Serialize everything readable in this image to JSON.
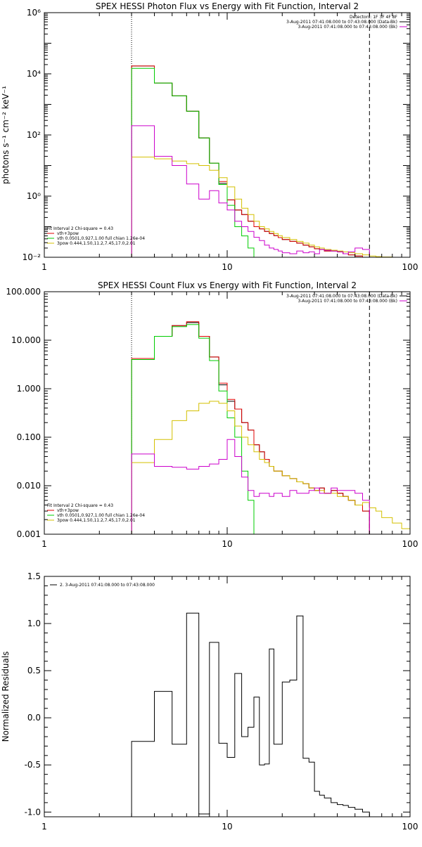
{
  "chart_data": [
    {
      "type": "line",
      "title": "SPEX HESSI Photon Flux vs Energy with Fit Function, Interval 2",
      "xlabel": "",
      "ylabel": "photons s⁻¹ cm⁻² keV⁻¹",
      "xscale": "log",
      "yscale": "log",
      "xlim": [
        1,
        100
      ],
      "ylim": [
        0.01,
        1000000
      ],
      "xticks": [
        {
          "value": 1,
          "label": "1"
        },
        {
          "value": 10,
          "label": "10"
        },
        {
          "value": 100,
          "label": "100"
        }
      ],
      "yticks": [
        {
          "value": 0.01,
          "label": "10⁻²"
        },
        {
          "value": 1,
          "label": "10⁰"
        },
        {
          "value": 100,
          "label": "10²"
        },
        {
          "value": 10000,
          "label": "10⁴"
        },
        {
          "value": 1000000,
          "label": "10⁶"
        }
      ],
      "vlines": [
        {
          "x": 3,
          "style": "dotted"
        },
        {
          "x": 60,
          "style": "dashed"
        }
      ],
      "legend_top_right": [
        {
          "text": "Detectors: 1F 3F 4F 8F",
          "color": ""
        },
        {
          "text": "3-Aug-2011 07:41:08.000 to 07:43:08.000 (Data-Bk)",
          "color": "#000000"
        },
        {
          "text": "3-Aug-2011 07:41:08.000 to 07:43:08.000 (Bk)",
          "color": "#cc00cc"
        }
      ],
      "legend_bottom_left": [
        {
          "text": "Fit Interval 2   Chi-square = 0.43",
          "color": ""
        },
        {
          "text": "vth+3pow",
          "color": "#e00000"
        },
        {
          "text": "vth 0.0501,0.927,1.00  full chian 1.26e-04",
          "color": "#00cc00"
        },
        {
          "text": "3pow 0.444,1.50,11.2,7.45,17.0,2.01",
          "color": "#d4c000"
        }
      ],
      "bin_edges": [
        3,
        3.5,
        4,
        4.5,
        5,
        5.5,
        6,
        6.5,
        7,
        7.5,
        8,
        8.5,
        9,
        9.5,
        10,
        11,
        12,
        13,
        14,
        15,
        16,
        17,
        18,
        19,
        20,
        22,
        24,
        26,
        28,
        30,
        32,
        34,
        37,
        40,
        43,
        46,
        50,
        55,
        60,
        65,
        70,
        80,
        90,
        100
      ],
      "series": [
        {
          "name": "Data-Bk",
          "color": "#000000",
          "start": 3,
          "end": 60,
          "values": [
            18000,
            18000,
            5000,
            5000,
            1900,
            1900,
            600,
            600,
            80,
            80,
            12,
            12,
            2.6,
            2.6,
            0.75,
            0.35,
            0.25,
            0.15,
            0.1,
            0.085,
            0.07,
            0.06,
            0.051,
            0.044,
            0.038,
            0.033,
            0.029,
            0.025,
            0.022,
            0.019,
            0.018,
            0.016,
            0.016,
            0.015,
            0.013,
            0.012,
            0.011,
            0.01
          ]
        },
        {
          "name": "vth+3pow",
          "color": "#e00000",
          "start": 3,
          "end": 60,
          "values": [
            18000,
            18000,
            5000,
            5000,
            1900,
            1900,
            600,
            600,
            80,
            80,
            12,
            12,
            3,
            3,
            0.75,
            0.35,
            0.25,
            0.15,
            0.1,
            0.085,
            0.07,
            0.06,
            0.051,
            0.044,
            0.038,
            0.033,
            0.029,
            0.025,
            0.022,
            0.019,
            0.018,
            0.016,
            0.016,
            0.015,
            0.013,
            0.012,
            0.011,
            0.01
          ]
        },
        {
          "name": "vth",
          "color": "#00cc00",
          "start": 3,
          "end": 15,
          "values": [
            15000,
            15000,
            5000,
            5000,
            1900,
            1900,
            600,
            600,
            80,
            80,
            12,
            12,
            2.4,
            2.4,
            0.5,
            0.1,
            0.05,
            0.02,
            0.01
          ]
        },
        {
          "name": "3pow",
          "color": "#d4c000",
          "start": 3,
          "end": 75,
          "values": [
            19,
            19,
            16.5,
            16.5,
            14,
            14,
            11.5,
            11.5,
            10,
            10,
            7,
            7,
            4,
            4,
            2,
            0.8,
            0.4,
            0.25,
            0.15,
            0.1,
            0.085,
            0.07,
            0.06,
            0.051,
            0.044,
            0.038,
            0.033,
            0.029,
            0.025,
            0.022,
            0.02,
            0.018,
            0.017,
            0.016,
            0.015,
            0.014,
            0.013,
            0.012,
            0.011,
            0.0105,
            0.0102
          ]
        },
        {
          "name": "Bk",
          "color": "#cc00cc",
          "start": 3,
          "end": 60,
          "values": [
            200,
            200,
            20,
            20,
            10,
            10,
            2.5,
            2.5,
            0.8,
            0.8,
            1.5,
            1.5,
            0.6,
            0.6,
            0.35,
            0.15,
            0.1,
            0.07,
            0.045,
            0.035,
            0.025,
            0.02,
            0.018,
            0.016,
            0.014,
            0.013,
            0.016,
            0.014,
            0.015,
            0.013,
            0.018,
            0.017,
            0.016,
            0.015,
            0.013,
            0.015,
            0.02,
            0.018
          ]
        }
      ]
    },
    {
      "type": "line",
      "title": "SPEX HESSI Count Flux vs Energy with Fit Function, Interval 2",
      "xlabel": "",
      "ylabel": "",
      "xscale": "log",
      "yscale": "log",
      "xlim": [
        1,
        100
      ],
      "ylim": [
        0.001,
        100
      ],
      "xticks": [
        {
          "value": 1,
          "label": "1"
        },
        {
          "value": 10,
          "label": "10"
        },
        {
          "value": 100,
          "label": "100"
        }
      ],
      "yticks": [
        {
          "value": 0.001,
          "label": "0.001"
        },
        {
          "value": 0.01,
          "label": "0.010"
        },
        {
          "value": 0.1,
          "label": "0.100"
        },
        {
          "value": 1,
          "label": "1.000"
        },
        {
          "value": 10,
          "label": "10.000"
        },
        {
          "value": 100,
          "label": "100.000"
        }
      ],
      "vlines": [
        {
          "x": 3,
          "style": "dotted"
        },
        {
          "x": 60,
          "style": "dashed"
        }
      ],
      "legend_top_right": [
        {
          "text": "3-Aug-2011 07:41:08.000 to 07:43:08.000 (Data-Bk)",
          "color": "#000000"
        },
        {
          "text": "3-Aug-2011 07:41:08.000 to 07:43:08.000 (Bk)",
          "color": "#cc00cc"
        }
      ],
      "legend_bottom_left": [
        {
          "text": "Fit Interval 2   Chi-square = 0.43",
          "color": ""
        },
        {
          "text": "vth+3pow",
          "color": "#e00000"
        },
        {
          "text": "vth 0.0501,0.927,1.00  full chian 1.26e-04",
          "color": "#00cc00"
        },
        {
          "text": "3pow 0.444,1.50,11.2,7.45,17.0,2.01",
          "color": "#d4c000"
        }
      ],
      "bin_edges": [
        3,
        4,
        5,
        6,
        7,
        8,
        9,
        10,
        11,
        12,
        13,
        14,
        15,
        16,
        17,
        18,
        20,
        22,
        24,
        26,
        28,
        30,
        32,
        34,
        37,
        40,
        43,
        46,
        50,
        55,
        60,
        65,
        70,
        80,
        90,
        100
      ],
      "series": [
        {
          "name": "Data-Bk",
          "color": "#000000",
          "start": 3,
          "end": 60,
          "values": [
            4,
            12,
            20,
            23,
            12,
            4.5,
            1.2,
            0.55,
            0.38,
            0.2,
            0.14,
            0.07,
            0.05,
            0.035,
            0.025,
            0.02,
            0.016,
            0.014,
            0.012,
            0.011,
            0.009,
            0.008,
            0.009,
            0.007,
            0.008,
            0.007,
            0.006,
            0.005,
            0.004,
            0.003
          ]
        },
        {
          "name": "vth+3pow",
          "color": "#e00000",
          "start": 3,
          "end": 60,
          "values": [
            4.2,
            12,
            20,
            24,
            12,
            4.5,
            1.3,
            0.6,
            0.38,
            0.2,
            0.14,
            0.07,
            0.05,
            0.035,
            0.025,
            0.02,
            0.016,
            0.014,
            0.012,
            0.011,
            0.009,
            0.008,
            0.009,
            0.007,
            0.008,
            0.007,
            0.006,
            0.005,
            0.004,
            0.003
          ]
        },
        {
          "name": "vth",
          "color": "#00cc00",
          "start": 3,
          "end": 15,
          "values": [
            4,
            12,
            19,
            21,
            11,
            3.8,
            0.9,
            0.25,
            0.1,
            0.02,
            0.005,
            0.001
          ]
        },
        {
          "name": "3pow",
          "color": "#d4c000",
          "start": 3,
          "end": 100,
          "values": [
            0.03,
            0.09,
            0.22,
            0.35,
            0.5,
            0.55,
            0.5,
            0.35,
            0.17,
            0.1,
            0.07,
            0.05,
            0.035,
            0.03,
            0.025,
            0.02,
            0.016,
            0.014,
            0.012,
            0.011,
            0.009,
            0.008,
            0.008,
            0.007,
            0.007,
            0.006,
            0.006,
            0.005,
            0.004,
            0.0045,
            0.0035,
            0.003,
            0.0022,
            0.0017,
            0.0013
          ]
        },
        {
          "name": "Bk",
          "color": "#cc00cc",
          "start": 3,
          "end": 60,
          "values": [
            0.045,
            0.025,
            0.024,
            0.022,
            0.025,
            0.028,
            0.035,
            0.09,
            0.04,
            0.015,
            0.008,
            0.006,
            0.007,
            0.007,
            0.006,
            0.007,
            0.006,
            0.008,
            0.007,
            0.007,
            0.008,
            0.009,
            0.007,
            0.007,
            0.009,
            0.008,
            0.008,
            0.008,
            0.007,
            0.005
          ]
        }
      ]
    },
    {
      "type": "line",
      "title": "",
      "xlabel": "",
      "ylabel": "Normalized Residuals",
      "xscale": "log",
      "yscale": "linear",
      "xlim": [
        1,
        100
      ],
      "ylim": [
        -1.05,
        1.5
      ],
      "xticks": [
        {
          "value": 1,
          "label": "1"
        },
        {
          "value": 10,
          "label": "10"
        },
        {
          "value": 100,
          "label": "100"
        }
      ],
      "yticks": [
        {
          "value": -1.0,
          "label": "-1.0"
        },
        {
          "value": -0.5,
          "label": "-0.5"
        },
        {
          "value": 0.0,
          "label": "0.0"
        },
        {
          "value": 0.5,
          "label": "0.5"
        },
        {
          "value": 1.0,
          "label": "1.0"
        },
        {
          "value": 1.5,
          "label": "1.5"
        }
      ],
      "legend_top_left": [
        {
          "text": "2.  3-Aug-2011 07:41:08.000 to 07:43:08.000",
          "color": "#000000"
        }
      ],
      "bin_edges": [
        3,
        4,
        5,
        6,
        7,
        8,
        9,
        10,
        11,
        12,
        13,
        14,
        15,
        16,
        17,
        18,
        20,
        22,
        24,
        26,
        28,
        30,
        32,
        34,
        37,
        40,
        43,
        46,
        50,
        55,
        60
      ],
      "series": [
        {
          "name": "",
          "color": "#000000",
          "start": 3,
          "end": 60,
          "values": [
            -0.25,
            0.28,
            -0.28,
            1.11,
            -1.02,
            0.8,
            -0.27,
            -0.42,
            0.47,
            -0.2,
            -0.1,
            0.22,
            -0.5,
            -0.49,
            0.73,
            -0.28,
            0.38,
            0.4,
            1.08,
            -0.43,
            -0.47,
            -0.78,
            -0.82,
            -0.85,
            -0.9,
            -0.92,
            -0.93,
            -0.95,
            -0.97,
            -1.0
          ]
        }
      ]
    }
  ]
}
